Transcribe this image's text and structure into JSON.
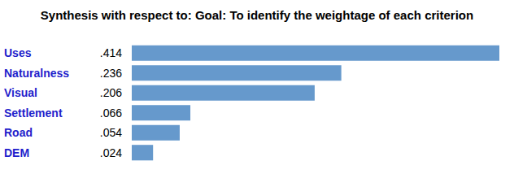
{
  "chart_data": {
    "type": "bar",
    "title": "Synthesis with respect to: Goal: To identify the weightage of each criterion",
    "orientation": "horizontal",
    "categories": [
      "Uses",
      "Naturalness",
      "Visual",
      "Settlement",
      "Road",
      "DEM"
    ],
    "values": [
      0.414,
      0.236,
      0.206,
      0.066,
      0.054,
      0.024
    ],
    "value_labels": [
      ".414",
      ".236",
      ".206",
      ".066",
      ".054",
      ".024"
    ],
    "data_labels": true,
    "tick_labels": "y",
    "grid": false,
    "color": "#6699cc"
  }
}
